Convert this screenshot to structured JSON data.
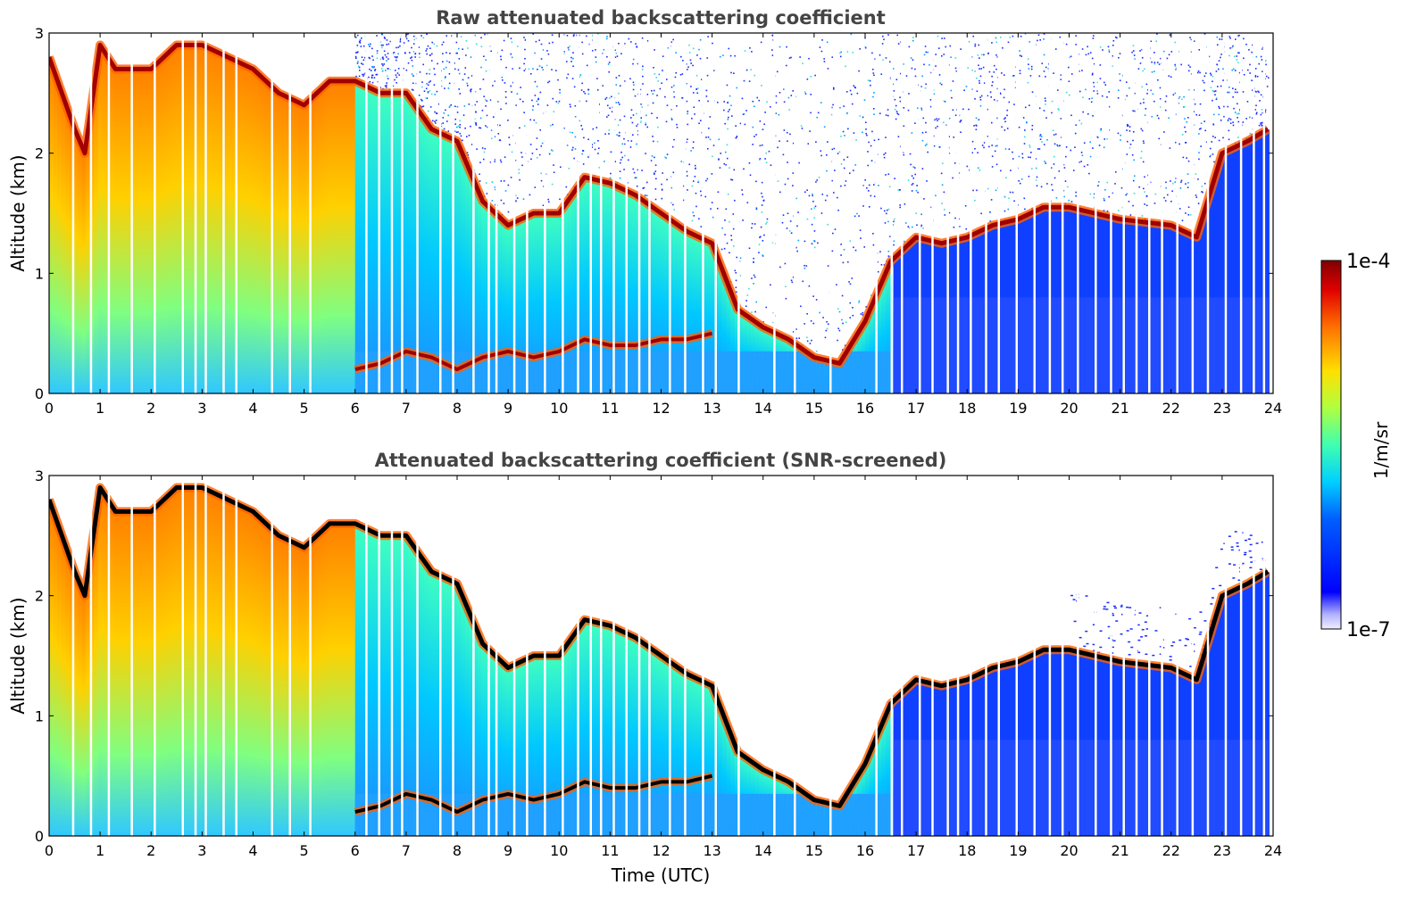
{
  "chart_data": [
    {
      "type": "heatmap",
      "title": "Raw attenuated backscattering coefficient",
      "xlabel": "",
      "ylabel": "Altitude (km)",
      "xlim": [
        0,
        24
      ],
      "ylim": [
        0,
        3
      ],
      "xticks": [
        "0",
        "1",
        "2",
        "3",
        "4",
        "5",
        "6",
        "7",
        "8",
        "9",
        "10",
        "11",
        "12",
        "13",
        "14",
        "15",
        "16",
        "17",
        "18",
        "19",
        "20",
        "21",
        "22",
        "23",
        "24"
      ],
      "yticks": [
        "0",
        "1",
        "2",
        "3"
      ],
      "screened": false,
      "upper_layer": [
        [
          0,
          2.8
        ],
        [
          0.5,
          2.2
        ],
        [
          0.7,
          2.0
        ],
        [
          1,
          2.9
        ],
        [
          1.3,
          2.7
        ],
        [
          2,
          2.7
        ],
        [
          2.5,
          2.9
        ],
        [
          3,
          2.9
        ],
        [
          3.5,
          2.8
        ],
        [
          4,
          2.7
        ],
        [
          4.5,
          2.5
        ],
        [
          5,
          2.4
        ],
        [
          5.5,
          2.6
        ],
        [
          6,
          2.6
        ],
        [
          6.5,
          2.5
        ],
        [
          7,
          2.5
        ],
        [
          7.5,
          2.2
        ],
        [
          8,
          2.1
        ],
        [
          8.5,
          1.6
        ],
        [
          9,
          1.4
        ],
        [
          9.5,
          1.5
        ],
        [
          10,
          1.5
        ],
        [
          10.5,
          1.8
        ],
        [
          11,
          1.75
        ],
        [
          11.5,
          1.65
        ],
        [
          12,
          1.5
        ],
        [
          12.5,
          1.35
        ],
        [
          13,
          1.25
        ],
        [
          13.5,
          0.7
        ],
        [
          14,
          0.55
        ],
        [
          14.5,
          0.45
        ],
        [
          15,
          0.3
        ],
        [
          15.5,
          0.25
        ],
        [
          16,
          0.6
        ],
        [
          16.5,
          1.1
        ],
        [
          17,
          1.3
        ],
        [
          17.5,
          1.25
        ],
        [
          18,
          1.3
        ],
        [
          18.5,
          1.4
        ],
        [
          19,
          1.45
        ],
        [
          19.5,
          1.55
        ],
        [
          20,
          1.55
        ],
        [
          20.5,
          1.5
        ],
        [
          21,
          1.45
        ],
        [
          22,
          1.4
        ],
        [
          22.5,
          1.3
        ],
        [
          23,
          2.0
        ],
        [
          23.5,
          2.1
        ],
        [
          23.9,
          2.2
        ]
      ],
      "lower_layer": [
        [
          6,
          0.2
        ],
        [
          6.5,
          0.25
        ],
        [
          7,
          0.35
        ],
        [
          7.5,
          0.3
        ],
        [
          8,
          0.2
        ],
        [
          8.5,
          0.3
        ],
        [
          9,
          0.35
        ],
        [
          9.5,
          0.3
        ],
        [
          10,
          0.35
        ],
        [
          10.5,
          0.45
        ],
        [
          11,
          0.4
        ],
        [
          11.5,
          0.4
        ],
        [
          12,
          0.45
        ],
        [
          12.5,
          0.45
        ],
        [
          13,
          0.5
        ]
      ],
      "dropouts": [
        0.45,
        0.8,
        1.15,
        1.6,
        2.05,
        2.6,
        2.85,
        3.05,
        3.4,
        3.65,
        4.35,
        4.7,
        5.1,
        6.2,
        6.45,
        6.7,
        6.9,
        7.2,
        7.65,
        7.9,
        8.3,
        8.6,
        8.75,
        9.1,
        9.35,
        9.7,
        10.05,
        10.35,
        10.6,
        10.8,
        11.05,
        11.3,
        11.55,
        11.75,
        12.15,
        12.45,
        12.8,
        13.05,
        13.5,
        14.2,
        14.6,
        15.3,
        16.2,
        16.5,
        16.7,
        17.05,
        17.3,
        17.6,
        17.8,
        18.05,
        18.35,
        18.6,
        18.95,
        19.3,
        19.6,
        19.85,
        20.15,
        20.5,
        20.8,
        21.05,
        21.3,
        21.55,
        21.8,
        22.1,
        22.4,
        22.7,
        23.05,
        23.35,
        23.6,
        23.8
      ]
    },
    {
      "type": "heatmap",
      "title": "Attenuated backscattering coefficient (SNR-screened)",
      "xlabel": "Time (UTC)",
      "ylabel": "Altitude (km)",
      "xlim": [
        0,
        24
      ],
      "ylim": [
        0,
        3
      ],
      "xticks": [
        "0",
        "1",
        "2",
        "3",
        "4",
        "5",
        "6",
        "7",
        "8",
        "9",
        "10",
        "11",
        "12",
        "13",
        "14",
        "15",
        "16",
        "17",
        "18",
        "19",
        "20",
        "21",
        "22",
        "23",
        "24"
      ],
      "yticks": [
        "0",
        "1",
        "2",
        "3"
      ],
      "screened": true,
      "saturated_color": "#000000"
    }
  ],
  "colorbar": {
    "max_label": "1e-4",
    "min_label": "1e-7",
    "unit_label": "1/m/sr",
    "colormap": "jet"
  }
}
